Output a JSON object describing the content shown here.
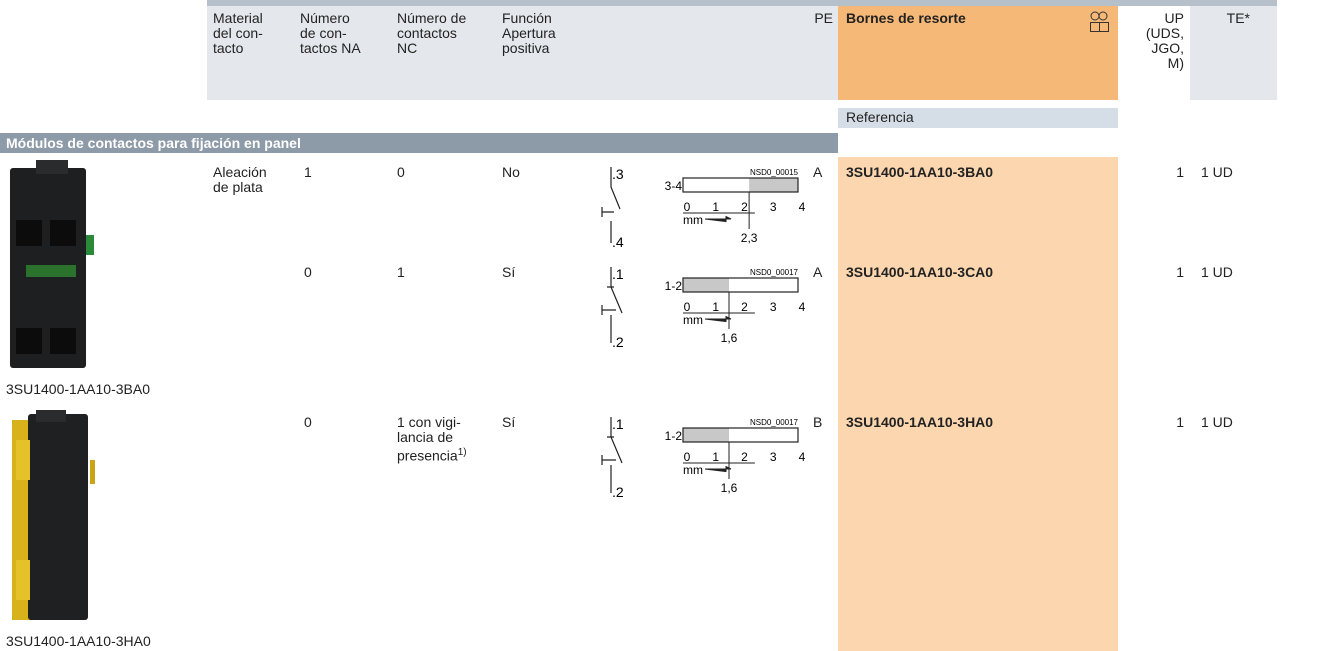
{
  "header": {
    "columns": [
      {
        "lines": [
          "Material",
          "del con-",
          "tacto"
        ]
      },
      {
        "lines": [
          "Número",
          "de con-",
          "tactos NA"
        ]
      },
      {
        "lines": [
          "Número de",
          "contactos",
          "NC"
        ]
      },
      {
        "lines": [
          "Función",
          "Apertura",
          "positiva"
        ]
      },
      {
        "lines": [
          "PE"
        ]
      },
      {
        "lines": [
          "Bornes de resorte"
        ]
      },
      {
        "lines": [
          "UP",
          "(UDS,",
          "JGO,",
          "M)"
        ]
      },
      {
        "lines": [
          "TE*"
        ]
      }
    ],
    "subheader": "Referencia"
  },
  "section": {
    "title": "Módulos de contactos para fijación en panel"
  },
  "rows": [
    {
      "material": [
        "Aleación",
        "de plata"
      ],
      "na": "1",
      "nc": [
        "0"
      ],
      "function": "No",
      "terminals": [
        ".3",
        ".4"
      ],
      "diagram": {
        "code": "NSD0_00015",
        "contacts": "3-4",
        "ticks": [
          "0",
          "1",
          "2",
          "3",
          "4"
        ],
        "unit": "mm",
        "travel": "2,3"
      },
      "pe": "A",
      "reference": "3SU1400-1AA10-3BA0",
      "up": "1",
      "te": "1 UD"
    },
    {
      "na": "0",
      "nc": [
        "1"
      ],
      "function": "Sí",
      "terminals": [
        ".1",
        ".2"
      ],
      "diagram": {
        "code": "NSD0_00017",
        "contacts": "1-2",
        "ticks": [
          "0",
          "1",
          "2",
          "3",
          "4"
        ],
        "unit": "mm",
        "travel": "1,6"
      },
      "pe": "A",
      "reference": "3SU1400-1AA10-3CA0",
      "up": "1",
      "te": "1 UD"
    },
    {
      "na": "0",
      "nc": [
        "1 con vigi-",
        "lancia de",
        "presencia"
      ],
      "footnote": "1)",
      "function": "Sí",
      "terminals": [
        ".1",
        ".2"
      ],
      "diagram": {
        "code": "NSD0_00017",
        "contacts": "1-2",
        "ticks": [
          "0",
          "1",
          "2",
          "3",
          "4"
        ],
        "unit": "mm",
        "travel": "1,6"
      },
      "pe": "B",
      "reference": "3SU1400-1AA10-3HA0",
      "up": "1",
      "te": "1 UD"
    }
  ],
  "images": [
    {
      "caption": "3SU1400-1AA10-3BA0"
    },
    {
      "caption": "3SU1400-1AA10-3HA0"
    }
  ]
}
